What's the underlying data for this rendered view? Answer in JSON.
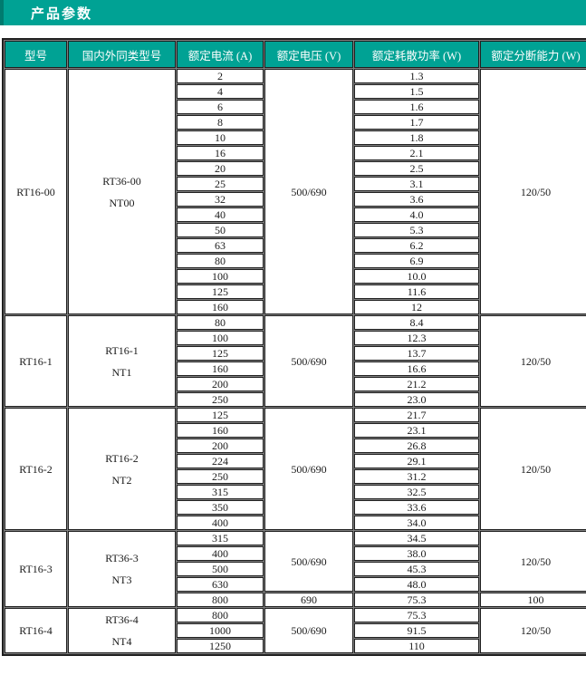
{
  "title_bar": {
    "title": "产品参数"
  },
  "colors": {
    "accent_teal": "#00A294",
    "accent_teal_dark": "#007B6F",
    "grid_gray": "#7F7F7F",
    "border_dark": "#1F1F1F",
    "header_text": "#FFFFFF",
    "cell_text": "#1A1A1A"
  },
  "table": {
    "headers": [
      "型号",
      "国内外同类型号",
      "额定电流 (A)",
      "额定电压 (V)",
      "额定耗散功率 (W)",
      "额定分断能力 (W)"
    ],
    "sections": [
      {
        "model": "RT16-00",
        "equivalent_lines": [
          "RT36-00",
          "NT00"
        ],
        "currents": [
          "2",
          "4",
          "6",
          "8",
          "10",
          "16",
          "20",
          "25",
          "32",
          "40",
          "50",
          "63",
          "80",
          "100",
          "125",
          "160"
        ],
        "powers": [
          "1.3",
          "1.5",
          "1.6",
          "1.7",
          "1.8",
          "2.1",
          "2.5",
          "3.1",
          "3.6",
          "4.0",
          "5.3",
          "6.2",
          "6.9",
          "10.0",
          "11.6",
          "12"
        ],
        "voltage_groups": [
          {
            "value": "500/690",
            "span": 16
          }
        ],
        "breaking_groups": [
          {
            "value": "120/50",
            "span": 16
          }
        ]
      },
      {
        "model": "RT16-1",
        "equivalent_lines": [
          "RT16-1",
          "NT1"
        ],
        "currents": [
          "80",
          "100",
          "125",
          "160",
          "200",
          "250"
        ],
        "powers": [
          "8.4",
          "12.3",
          "13.7",
          "16.6",
          "21.2",
          "23.0"
        ],
        "voltage_groups": [
          {
            "value": "500/690",
            "span": 6
          }
        ],
        "breaking_groups": [
          {
            "value": "120/50",
            "span": 6
          }
        ]
      },
      {
        "model": "RT16-2",
        "equivalent_lines": [
          "RT16-2",
          "NT2"
        ],
        "currents": [
          "125",
          "160",
          "200",
          "224",
          "250",
          "315",
          "350",
          "400"
        ],
        "powers": [
          "21.7",
          "23.1",
          "26.8",
          "29.1",
          "31.2",
          "32.5",
          "33.6",
          "34.0"
        ],
        "voltage_groups": [
          {
            "value": "500/690",
            "span": 8
          }
        ],
        "breaking_groups": [
          {
            "value": "120/50",
            "span": 8
          }
        ]
      },
      {
        "model": "RT16-3",
        "equivalent_lines": [
          "RT36-3",
          "NT3"
        ],
        "currents": [
          "315",
          "400",
          "500",
          "630",
          "800"
        ],
        "powers": [
          "34.5",
          "38.0",
          "45.3",
          "48.0",
          "75.3"
        ],
        "voltage_groups": [
          {
            "value": "500/690",
            "span": 4
          },
          {
            "value": "690",
            "span": 1
          }
        ],
        "breaking_groups": [
          {
            "value": "120/50",
            "span": 4
          },
          {
            "value": "100",
            "span": 1
          }
        ]
      },
      {
        "model": "RT16-4",
        "equivalent_lines": [
          "RT36-4",
          "NT4"
        ],
        "currents": [
          "800",
          "1000",
          "1250"
        ],
        "powers": [
          "75.3",
          "91.5",
          "110"
        ],
        "voltage_groups": [
          {
            "value": "500/690",
            "span": 3
          }
        ],
        "breaking_groups": [
          {
            "value": "120/50",
            "span": 3
          }
        ]
      }
    ]
  }
}
